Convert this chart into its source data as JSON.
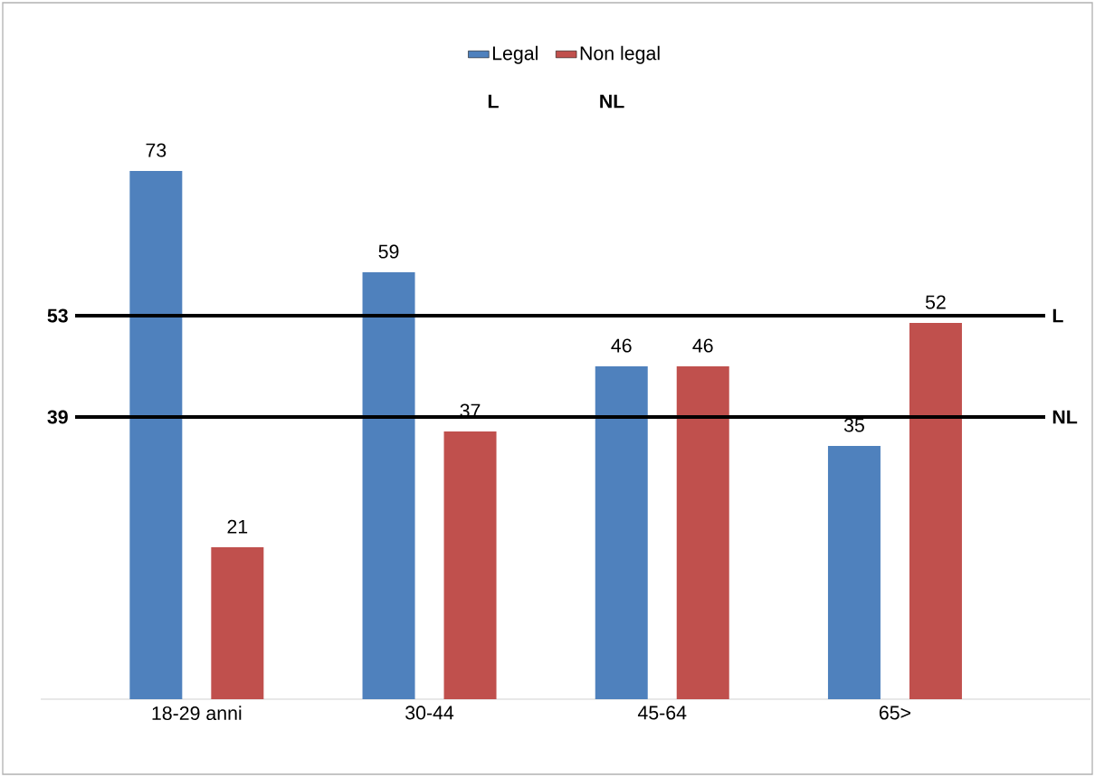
{
  "chart_data": {
    "type": "bar",
    "categories": [
      "18-29 anni",
      "30-44",
      "45-64",
      "65>"
    ],
    "series": [
      {
        "name": "Legal",
        "color": "#4f81bd",
        "values": [
          73,
          59,
          46,
          35
        ]
      },
      {
        "name": "Non legal",
        "color": "#c0504d",
        "values": [
          21,
          37,
          46,
          52
        ]
      }
    ],
    "tick_labels": "x",
    "grid": false,
    "legend": "top",
    "data_labels": true,
    "ref_lines": [
      {
        "axis": "y",
        "value": 53,
        "label": "L",
        "color": "#000000"
      },
      {
        "axis": "y",
        "value": 39,
        "label": "NL",
        "color": "#000000"
      }
    ],
    "annotations": [
      "L",
      "NL",
      "53",
      "39"
    ]
  }
}
